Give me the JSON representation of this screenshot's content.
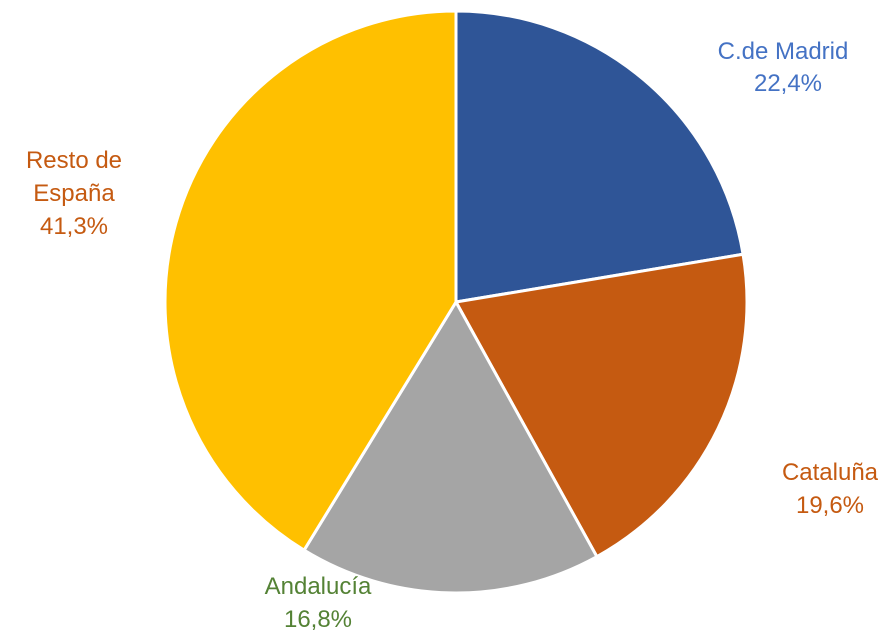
{
  "chart_data": {
    "type": "pie",
    "slices": [
      {
        "label": "C.de Madrid",
        "value_label": "22,4%",
        "value": 22.4,
        "color": "#2F5597",
        "label_color": "#4472C4"
      },
      {
        "label": "Cataluña",
        "value_label": "19,6%",
        "value": 19.6,
        "color": "#C55A11",
        "label_color": "#C55A11"
      },
      {
        "label": "Andalucía",
        "value_label": "16,8%",
        "value": 16.8,
        "color": "#A5A5A5",
        "label_color": "#548235"
      },
      {
        "label": "Resto de España",
        "label_lines": [
          "Resto de",
          "España"
        ],
        "value_label": "41,3%",
        "value": 41.3,
        "color": "#FFC000",
        "label_color": "#C55A11"
      }
    ],
    "start_angle": "12 o'clock",
    "direction": "clockwise",
    "legend": "none"
  }
}
